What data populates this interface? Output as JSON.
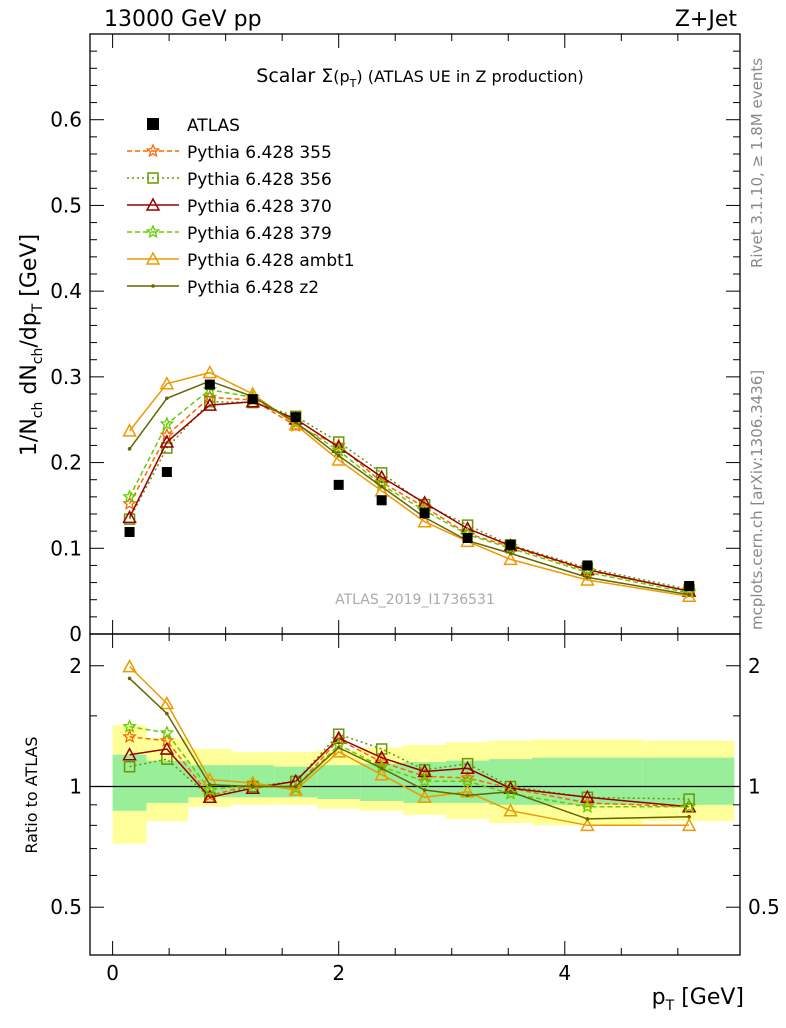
{
  "header": {
    "left": "13000 GeV pp",
    "right": "Z+Jet"
  },
  "side": {
    "top": "Rivet 3.1.10, ≥ 1.8M events",
    "bottom": "mcplots.cern.ch [arXiv:1306.3436]"
  },
  "watermark": "ATLAS_2019_I1736531",
  "title": {
    "prefix": "Scalar ",
    "sigma": "Σ",
    "arg": "(p",
    "sub": "T",
    "close": ")",
    "suffix": " (ATLAS UE in Z production)"
  },
  "ratio_ylabel": "Ratio to ATLAS",
  "chart_data": [
    {
      "type": "line",
      "panel": "main",
      "ylabel": "1/N_ch dN_ch/dp_T [GeV]",
      "xlabel": "p_T [GeV]",
      "xlim": [
        -0.2,
        5.55
      ],
      "ylim": [
        0,
        0.7
      ],
      "yticks": [
        {
          "v": 0,
          "label": "0"
        },
        {
          "v": 0.1,
          "label": "0.1"
        },
        {
          "v": 0.2,
          "label": "0.2"
        },
        {
          "v": 0.3,
          "label": "0.3"
        },
        {
          "v": 0.4,
          "label": "0.4"
        },
        {
          "v": 0.5,
          "label": "0.5"
        },
        {
          "v": 0.6,
          "label": "0.6"
        }
      ],
      "x": [
        0.15,
        0.48,
        0.86,
        1.24,
        1.62,
        2.0,
        2.38,
        2.76,
        3.14,
        3.52,
        4.2,
        5.1
      ],
      "data": {
        "name": "ATLAS",
        "values": [
          0.119,
          0.189,
          0.291,
          0.274,
          0.253,
          0.174,
          0.156,
          0.141,
          0.112,
          0.104,
          0.08,
          0.056
        ]
      },
      "series": [
        {
          "name": "Pythia 6.428 355",
          "color": "#ff6600",
          "dash": "5,3",
          "marker": "star",
          "values": [
            0.152,
            0.232,
            0.276,
            0.273,
            0.243,
            0.22,
            0.177,
            0.148,
            0.117,
            0.102,
            0.074,
            0.05
          ]
        },
        {
          "name": "Pythia 6.428 356",
          "color": "#669900",
          "dash": "2,3",
          "marker": "square",
          "values": [
            0.134,
            0.217,
            0.271,
            0.27,
            0.254,
            0.224,
            0.188,
            0.151,
            0.127,
            0.104,
            0.077,
            0.052
          ]
        },
        {
          "name": "Pythia 6.428 370",
          "color": "#990000",
          "dash": "",
          "marker": "triangle",
          "values": [
            0.136,
            0.224,
            0.267,
            0.271,
            0.251,
            0.218,
            0.183,
            0.153,
            0.123,
            0.103,
            0.075,
            0.05
          ]
        },
        {
          "name": "Pythia 6.428 379",
          "color": "#66cc00",
          "dash": "5,3",
          "marker": "star",
          "values": [
            0.16,
            0.245,
            0.285,
            0.276,
            0.246,
            0.214,
            0.174,
            0.144,
            0.116,
            0.1,
            0.072,
            0.048
          ]
        },
        {
          "name": "Pythia 6.428 ambt1",
          "color": "#ee9900",
          "dash": "",
          "marker": "triangle",
          "values": [
            0.237,
            0.292,
            0.305,
            0.28,
            0.244,
            0.203,
            0.167,
            0.131,
            0.108,
            0.087,
            0.063,
            0.044
          ]
        },
        {
          "name": "Pythia 6.428 z2",
          "color": "#666600",
          "dash": "",
          "marker": "dot",
          "values": [
            0.216,
            0.275,
            0.295,
            0.277,
            0.247,
            0.208,
            0.172,
            0.136,
            0.109,
            0.094,
            0.066,
            0.046
          ]
        }
      ]
    },
    {
      "type": "line",
      "panel": "ratio",
      "ylabel": "Ratio to ATLAS",
      "xlabel": "p_T [GeV]",
      "xlim": [
        -0.2,
        5.55
      ],
      "ylim": [
        0.38,
        2.4
      ],
      "log_y": true,
      "yticks": [
        {
          "v": 0.5,
          "label": "0.5"
        },
        {
          "v": 1,
          "label": "1"
        },
        {
          "v": 2,
          "label": "2"
        }
      ],
      "xticks": [
        {
          "v": 0,
          "label": "0"
        },
        {
          "v": 2,
          "label": "2"
        },
        {
          "v": 4,
          "label": "4"
        }
      ],
      "bin_edges": [
        0.0,
        0.3,
        0.67,
        1.05,
        1.43,
        1.81,
        2.19,
        2.57,
        2.95,
        3.33,
        3.71,
        4.69,
        5.5
      ],
      "band_inner": [
        [
          0.87,
          1.2
        ],
        [
          0.91,
          1.16
        ],
        [
          0.94,
          1.13
        ],
        [
          0.94,
          1.13
        ],
        [
          0.94,
          1.12
        ],
        [
          0.93,
          1.13
        ],
        [
          0.92,
          1.14
        ],
        [
          0.91,
          1.15
        ],
        [
          0.91,
          1.16
        ],
        [
          0.9,
          1.17
        ],
        [
          0.9,
          1.18
        ],
        [
          0.9,
          1.18
        ]
      ],
      "band_outer": [
        [
          0.72,
          1.42
        ],
        [
          0.82,
          1.32
        ],
        [
          0.89,
          1.24
        ],
        [
          0.9,
          1.22
        ],
        [
          0.9,
          1.22
        ],
        [
          0.88,
          1.23
        ],
        [
          0.87,
          1.25
        ],
        [
          0.85,
          1.27
        ],
        [
          0.83,
          1.29
        ],
        [
          0.81,
          1.3
        ],
        [
          0.8,
          1.31
        ],
        [
          0.82,
          1.3
        ]
      ],
      "series": [
        {
          "name": "Pythia 6.428 355",
          "values": [
            1.33,
            1.3,
            0.95,
            1.01,
            0.99,
            1.31,
            1.15,
            1.06,
            1.05,
            0.99,
            0.91,
            0.89
          ]
        },
        {
          "name": "Pythia 6.428 356",
          "values": [
            1.12,
            1.17,
            0.94,
            1.0,
            1.03,
            1.35,
            1.24,
            1.1,
            1.14,
            1.0,
            0.94,
            0.93
          ]
        },
        {
          "name": "Pythia 6.428 370",
          "values": [
            1.2,
            1.24,
            0.94,
            0.99,
            1.03,
            1.32,
            1.18,
            1.09,
            1.11,
            0.99,
            0.94,
            0.89
          ]
        },
        {
          "name": "Pythia 6.428 379",
          "values": [
            1.41,
            1.36,
            0.98,
            1.01,
            0.99,
            1.27,
            1.12,
            1.03,
            1.03,
            0.96,
            0.89,
            0.89
          ]
        },
        {
          "name": "Pythia 6.428 ambt1",
          "values": [
            1.99,
            1.61,
            1.04,
            1.02,
            0.98,
            1.22,
            1.07,
            0.94,
            0.97,
            0.87,
            0.8,
            0.8
          ]
        },
        {
          "name": "Pythia 6.428 z2",
          "values": [
            1.86,
            1.52,
            1.01,
            1.0,
            1.0,
            1.25,
            1.11,
            0.98,
            0.95,
            0.97,
            0.83,
            0.84
          ]
        }
      ]
    }
  ]
}
